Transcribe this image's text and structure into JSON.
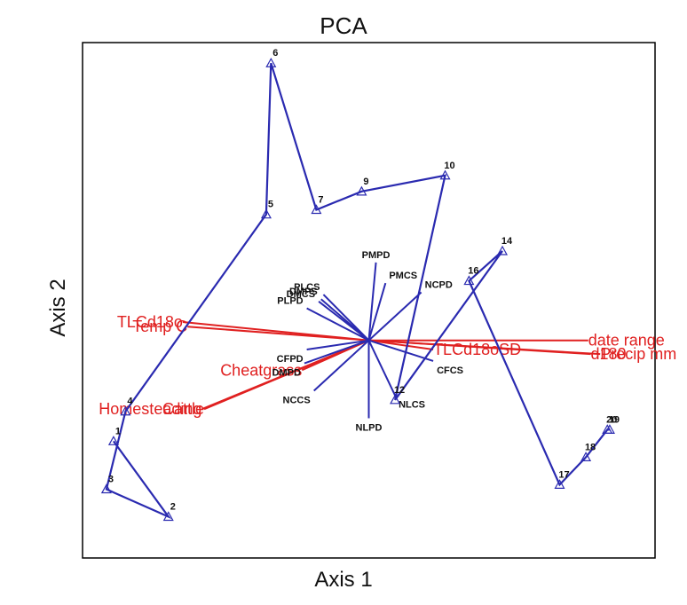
{
  "chart_data": {
    "type": "scatter",
    "title": "PCA",
    "xlabel": "Axis 1",
    "ylabel": "Axis 2",
    "xlim": [
      -1.2,
      1.2
    ],
    "ylim": [
      -0.95,
      1.3
    ],
    "grid": false,
    "trajectory": {
      "color": "#2a2ab0",
      "points": [
        {
          "label": "1",
          "x": -1.07,
          "y": -0.44
        },
        {
          "label": "2",
          "x": -0.84,
          "y": -0.77
        },
        {
          "label": "3",
          "x": -1.1,
          "y": -0.65
        },
        {
          "label": "4",
          "x": -1.02,
          "y": -0.31
        },
        {
          "label": "5",
          "x": -0.43,
          "y": 0.55
        },
        {
          "label": "6",
          "x": -0.41,
          "y": 1.21
        },
        {
          "label": "7",
          "x": -0.22,
          "y": 0.57
        },
        {
          "label": "9",
          "x": -0.03,
          "y": 0.65
        },
        {
          "label": "10",
          "x": 0.32,
          "y": 0.72
        },
        {
          "label": "12",
          "x": 0.11,
          "y": -0.26
        },
        {
          "label": "14",
          "x": 0.56,
          "y": 0.39
        },
        {
          "label": "16",
          "x": 0.42,
          "y": 0.26
        },
        {
          "label": "17",
          "x": 0.8,
          "y": -0.63
        },
        {
          "label": "18",
          "x": 0.91,
          "y": -0.51
        },
        {
          "label": "20",
          "x": 1.0,
          "y": -0.39
        },
        {
          "label": "19",
          "x": 1.01,
          "y": -0.39
        }
      ]
    },
    "species_vectors": {
      "color": "#2a2ab0",
      "items": [
        {
          "label": "PMPD",
          "x": 0.03,
          "y": 0.34
        },
        {
          "label": "PMCS",
          "x": 0.07,
          "y": 0.25
        },
        {
          "label": "NCPD",
          "x": 0.22,
          "y": 0.21
        },
        {
          "label": "PLCS",
          "x": -0.19,
          "y": 0.2
        },
        {
          "label": "DMPS",
          "x": -0.2,
          "y": 0.18
        },
        {
          "label": "DMCS",
          "x": -0.21,
          "y": 0.17
        },
        {
          "label": "PLPD",
          "x": -0.26,
          "y": 0.14
        },
        {
          "label": "CFPD",
          "x": -0.26,
          "y": -0.04
        },
        {
          "label": "DMPD",
          "x": -0.27,
          "y": -0.1
        },
        {
          "label": "NCCS",
          "x": -0.23,
          "y": -0.22
        },
        {
          "label": "NLCS",
          "x": 0.11,
          "y": -0.24
        },
        {
          "label": "NLPD",
          "x": 0.0,
          "y": -0.34
        },
        {
          "label": "CFCS",
          "x": 0.27,
          "y": -0.09
        }
      ]
    },
    "environment_vectors": {
      "color": "#e02020",
      "items": [
        {
          "label": "TLCd18o",
          "x": -0.78,
          "y": 0.08
        },
        {
          "label": "Temp C",
          "x": -0.76,
          "y": 0.06
        },
        {
          "label": "date range",
          "x": 0.92,
          "y": 0.0
        },
        {
          "label": "Precip mm",
          "x": 0.97,
          "y": -0.06
        },
        {
          "label": "d180",
          "x": 0.93,
          "y": -0.06
        },
        {
          "label": "TLCd18oSD",
          "x": 0.27,
          "y": -0.04
        },
        {
          "label": "Cheatgrass",
          "x": -0.28,
          "y": -0.13
        },
        {
          "label": "Homesteading",
          "x": -0.7,
          "y": -0.3
        },
        {
          "label": "Cattle",
          "x": -0.69,
          "y": -0.3
        }
      ]
    }
  }
}
